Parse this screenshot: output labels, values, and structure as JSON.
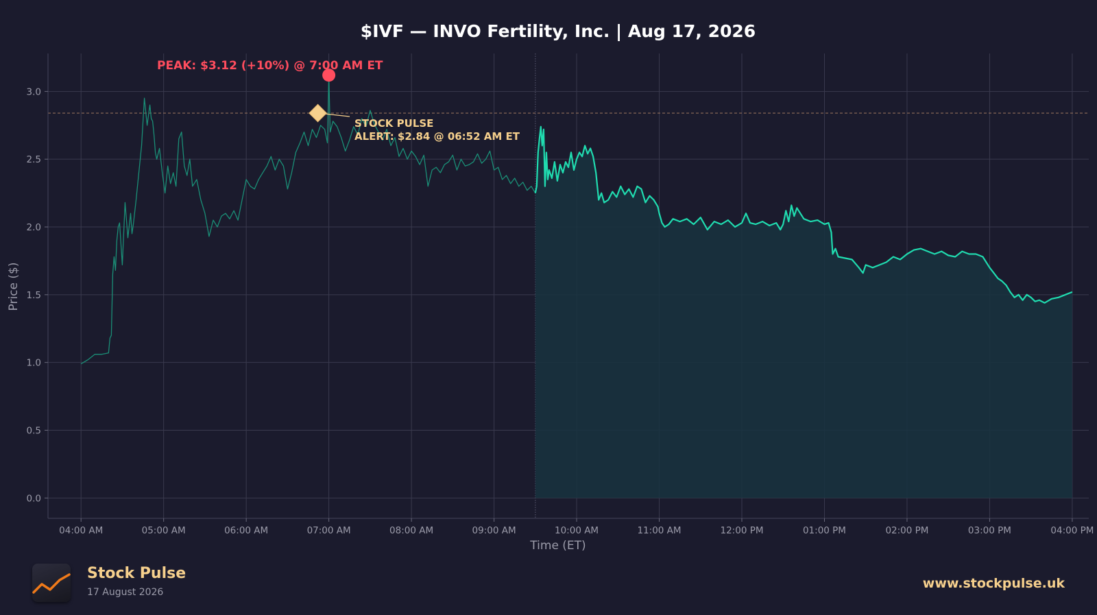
{
  "chart_data": {
    "type": "line",
    "title": "$IVF — INVO Fertility, Inc.  |  Aug 17, 2026",
    "xlabel": "Time (ET)",
    "ylabel": "Price ($)",
    "ylim": [
      -0.15,
      3.28
    ],
    "yticks": [
      0.0,
      0.5,
      1.0,
      1.5,
      2.0,
      2.5,
      3.0
    ],
    "ytick_labels": [
      "0.0",
      "0.5",
      "1.0",
      "1.5",
      "2.0",
      "2.5",
      "3.0"
    ],
    "x_range": [
      "03:36 AM",
      "04:12 PM"
    ],
    "xticks": [
      "04:00",
      "05:00",
      "06:00",
      "07:00",
      "08:00",
      "09:00",
      "10:00",
      "11:00",
      "12:00",
      "13:00",
      "14:00",
      "15:00",
      "16:00"
    ],
    "xtick_labels": [
      "04:00 AM",
      "05:00 AM",
      "06:00 AM",
      "07:00 AM",
      "08:00 AM",
      "09:00 AM",
      "10:00 AM",
      "11:00 AM",
      "12:00 PM",
      "01:00 PM",
      "02:00 PM",
      "03:00 PM",
      "04:00 PM"
    ],
    "grid": true,
    "market_open": "09:30",
    "alert_level": 2.84,
    "series": [
      {
        "session": "pre-market",
        "x": [
          "04:00",
          "04:05",
          "04:10",
          "04:15",
          "04:20",
          "04:21",
          "04:22",
          "04:23",
          "04:24",
          "04:25",
          "04:26",
          "04:27",
          "04:28",
          "04:30",
          "04:32",
          "04:34",
          "04:36",
          "04:37",
          "04:38",
          "04:40",
          "04:42",
          "04:44",
          "04:46",
          "04:48",
          "04:50",
          "04:51",
          "04:52",
          "04:53",
          "04:54",
          "04:55",
          "04:57",
          "04:59",
          "05:01",
          "05:03",
          "05:05",
          "05:07",
          "05:09",
          "05:11",
          "05:13",
          "05:15",
          "05:17",
          "05:19",
          "05:21",
          "05:24",
          "05:27",
          "05:30",
          "05:33",
          "05:36",
          "05:39",
          "05:42",
          "05:45",
          "05:48",
          "05:51",
          "05:54",
          "05:57",
          "06:00",
          "06:03",
          "06:06",
          "06:09",
          "06:12",
          "06:15",
          "06:18",
          "06:21",
          "06:24",
          "06:27",
          "06:30",
          "06:33",
          "06:36",
          "06:39",
          "06:42",
          "06:45",
          "06:48",
          "06:51",
          "06:54",
          "06:57",
          "06:59",
          "07:00",
          "07:01",
          "07:03",
          "07:06",
          "07:09",
          "07:12",
          "07:15",
          "07:18",
          "07:21",
          "07:24",
          "07:27",
          "07:30",
          "07:33",
          "07:36",
          "07:39",
          "07:42",
          "07:45",
          "07:48",
          "07:51",
          "07:54",
          "07:57",
          "08:00",
          "08:03",
          "08:06",
          "08:09",
          "08:12",
          "08:15",
          "08:18",
          "08:21",
          "08:24",
          "08:27",
          "08:30",
          "08:33",
          "08:36",
          "08:39",
          "08:42",
          "08:45",
          "08:48",
          "08:51",
          "08:54",
          "08:57",
          "09:00",
          "09:03",
          "09:06",
          "09:09",
          "09:12",
          "09:15",
          "09:18",
          "09:21",
          "09:24",
          "09:27",
          "09:30"
        ],
        "y": [
          0.99,
          1.02,
          1.06,
          1.06,
          1.07,
          1.18,
          1.2,
          1.65,
          1.78,
          1.68,
          1.9,
          2.0,
          2.03,
          1.72,
          2.18,
          1.92,
          2.1,
          1.95,
          2.02,
          2.2,
          2.4,
          2.6,
          2.95,
          2.75,
          2.9,
          2.8,
          2.78,
          2.68,
          2.55,
          2.5,
          2.58,
          2.4,
          2.25,
          2.45,
          2.32,
          2.4,
          2.3,
          2.65,
          2.7,
          2.45,
          2.38,
          2.5,
          2.3,
          2.35,
          2.2,
          2.1,
          1.93,
          2.05,
          2.0,
          2.08,
          2.1,
          2.06,
          2.12,
          2.05,
          2.2,
          2.35,
          2.3,
          2.28,
          2.35,
          2.4,
          2.45,
          2.52,
          2.42,
          2.5,
          2.45,
          2.28,
          2.4,
          2.55,
          2.62,
          2.7,
          2.6,
          2.72,
          2.66,
          2.75,
          2.72,
          2.62,
          3.12,
          2.7,
          2.78,
          2.74,
          2.66,
          2.56,
          2.64,
          2.74,
          2.68,
          2.8,
          2.74,
          2.86,
          2.76,
          2.7,
          2.64,
          2.72,
          2.6,
          2.66,
          2.52,
          2.58,
          2.5,
          2.56,
          2.52,
          2.46,
          2.53,
          2.3,
          2.42,
          2.44,
          2.4,
          2.46,
          2.48,
          2.53,
          2.42,
          2.5,
          2.45,
          2.46,
          2.48,
          2.54,
          2.47,
          2.5,
          2.56,
          2.42,
          2.44,
          2.35,
          2.38,
          2.32,
          2.36,
          2.3,
          2.33,
          2.27,
          2.3,
          2.25
        ]
      },
      {
        "session": "regular",
        "x": [
          "09:31",
          "09:32",
          "09:33",
          "09:34",
          "09:35",
          "09:36",
          "09:37",
          "09:38",
          "09:39",
          "09:40",
          "09:42",
          "09:44",
          "09:46",
          "09:48",
          "09:50",
          "09:52",
          "09:54",
          "09:56",
          "09:58",
          "10:00",
          "10:02",
          "10:04",
          "10:06",
          "10:08",
          "10:10",
          "10:12",
          "10:14",
          "10:16",
          "10:18",
          "10:20",
          "10:23",
          "10:26",
          "10:29",
          "10:32",
          "10:35",
          "10:38",
          "10:41",
          "10:44",
          "10:47",
          "10:50",
          "10:53",
          "10:56",
          "10:59",
          "11:00",
          "11:02",
          "11:04",
          "11:07",
          "11:10",
          "11:15",
          "11:20",
          "11:25",
          "11:30",
          "11:35",
          "11:40",
          "11:45",
          "11:50",
          "11:55",
          "12:00",
          "12:03",
          "12:06",
          "12:10",
          "12:15",
          "12:20",
          "12:25",
          "12:28",
          "12:30",
          "12:32",
          "12:34",
          "12:36",
          "12:38",
          "12:40",
          "12:45",
          "12:50",
          "12:55",
          "13:00",
          "13:03",
          "13:05",
          "13:06",
          "13:08",
          "13:10",
          "13:15",
          "13:20",
          "13:25",
          "13:28",
          "13:30",
          "13:35",
          "13:40",
          "13:45",
          "13:50",
          "13:55",
          "14:00",
          "14:05",
          "14:10",
          "14:15",
          "14:20",
          "14:25",
          "14:30",
          "14:35",
          "14:40",
          "14:45",
          "14:50",
          "14:55",
          "15:00",
          "15:03",
          "15:06",
          "15:09",
          "15:12",
          "15:15",
          "15:18",
          "15:21",
          "15:24",
          "15:27",
          "15:30",
          "15:33",
          "15:36",
          "15:40",
          "15:45",
          "15:50",
          "15:55",
          "16:00"
        ],
        "y": [
          2.3,
          2.55,
          2.65,
          2.74,
          2.6,
          2.72,
          2.3,
          2.55,
          2.35,
          2.42,
          2.36,
          2.48,
          2.34,
          2.46,
          2.4,
          2.48,
          2.44,
          2.55,
          2.42,
          2.5,
          2.55,
          2.52,
          2.6,
          2.54,
          2.58,
          2.52,
          2.4,
          2.2,
          2.25,
          2.18,
          2.2,
          2.26,
          2.22,
          2.3,
          2.24,
          2.28,
          2.22,
          2.3,
          2.28,
          2.18,
          2.23,
          2.2,
          2.15,
          2.1,
          2.03,
          2.0,
          2.02,
          2.06,
          2.04,
          2.06,
          2.02,
          2.07,
          1.98,
          2.04,
          2.02,
          2.05,
          2.0,
          2.03,
          2.1,
          2.03,
          2.02,
          2.04,
          2.01,
          2.03,
          1.98,
          2.02,
          2.12,
          2.04,
          2.16,
          2.08,
          2.14,
          2.06,
          2.04,
          2.05,
          2.02,
          2.03,
          1.96,
          1.8,
          1.84,
          1.78,
          1.77,
          1.76,
          1.7,
          1.66,
          1.72,
          1.7,
          1.72,
          1.74,
          1.78,
          1.76,
          1.8,
          1.83,
          1.84,
          1.82,
          1.8,
          1.82,
          1.79,
          1.78,
          1.82,
          1.8,
          1.8,
          1.78,
          1.7,
          1.66,
          1.62,
          1.6,
          1.57,
          1.52,
          1.48,
          1.5,
          1.46,
          1.5,
          1.48,
          1.45,
          1.46,
          1.44,
          1.47,
          1.48,
          1.5,
          1.52
        ]
      }
    ],
    "annotations": {
      "peak": {
        "x": "07:00",
        "y": 3.12,
        "label": "PEAK: $3.12 (+10%) @ 7:00 AM ET",
        "color": "#ff4d5e"
      },
      "alert": {
        "x": "06:52",
        "y": 2.84,
        "label_line1": "STOCK PULSE",
        "label_line2": "ALERT: $2.84 @ 06:52 AM ET",
        "color": "#f6d08d"
      }
    },
    "colors": {
      "line": "#20dcb0",
      "premarket_line": "#1b8f77",
      "area_fill": "#18323f",
      "background": "#1b1b2d"
    }
  },
  "branding": {
    "name": "Stock Pulse",
    "date": "17 August 2026",
    "url": "www.stockpulse.uk",
    "logo_icon": "trend-line-icon",
    "accent": "#f6d08d"
  }
}
